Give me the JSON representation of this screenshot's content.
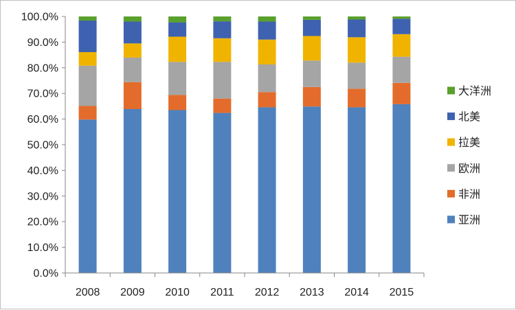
{
  "chart_data": {
    "type": "bar",
    "stacked": true,
    "normalized_percent": true,
    "categories": [
      "2008",
      "2009",
      "2010",
      "2011",
      "2012",
      "2013",
      "2014",
      "2015"
    ],
    "series": [
      {
        "name": "亚洲",
        "color": "#4f81bd",
        "values": [
          59.8,
          63.9,
          63.5,
          62.4,
          64.6,
          64.9,
          64.6,
          65.8
        ]
      },
      {
        "name": "非洲",
        "color": "#e36c2c",
        "values": [
          5.3,
          10.5,
          5.9,
          5.6,
          5.9,
          7.6,
          7.2,
          8.3
        ]
      },
      {
        "name": "欧洲",
        "color": "#a5a5a5",
        "values": [
          15.7,
          9.6,
          12.9,
          14.3,
          10.8,
          10.3,
          10.2,
          10.2
        ]
      },
      {
        "name": "拉美",
        "color": "#f0b400",
        "values": [
          5.3,
          5.5,
          9.8,
          9.2,
          9.7,
          9.6,
          9.9,
          8.8
        ]
      },
      {
        "name": "北美",
        "color": "#3e62b0",
        "values": [
          12.3,
          8.5,
          5.6,
          6.6,
          7.0,
          6.3,
          6.9,
          6.0
        ]
      },
      {
        "name": "大洋洲",
        "color": "#5aa02c",
        "values": [
          1.6,
          2.0,
          2.3,
          1.9,
          2.0,
          1.3,
          1.2,
          0.9
        ]
      }
    ],
    "yticks": [
      "0.0%",
      "10.0%",
      "20.0%",
      "30.0%",
      "40.0%",
      "50.0%",
      "60.0%",
      "70.0%",
      "80.0%",
      "90.0%",
      "100.0%"
    ],
    "ylim": [
      0,
      100
    ],
    "title": "",
    "xlabel": "",
    "ylabel": "",
    "grid": false,
    "legend_position": "right"
  }
}
